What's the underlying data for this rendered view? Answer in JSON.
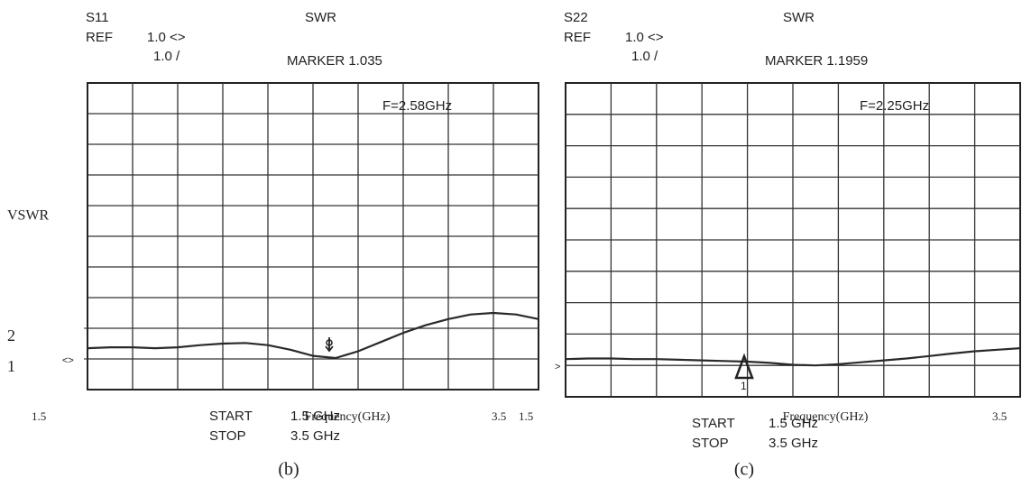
{
  "chart_data": [
    {
      "type": "line",
      "trace": "S11",
      "title": "SWR",
      "ref_label": "REF",
      "ref_value": "1.0 <>",
      "scale": "1.0 /",
      "marker": "MARKER 1.035",
      "marker_freq": "F=2.58GHz",
      "ref_symbol": "<>",
      "start_label": "START",
      "start": "1.5 GHz",
      "stop_label": "STOP",
      "stop": "3.5 GHz",
      "caption": "(b)",
      "x_label": "Frequency(GHz)",
      "y_label": "VSWR",
      "xlim": [
        1.5,
        3.5
      ],
      "xticks": [
        1.5,
        3.5
      ],
      "ylim": [
        0,
        10
      ],
      "yticks": [
        1,
        2
      ],
      "x": [
        1.5,
        1.6,
        1.7,
        1.8,
        1.9,
        2.0,
        2.1,
        2.2,
        2.3,
        2.4,
        2.5,
        2.6,
        2.7,
        2.8,
        2.9,
        3.0,
        3.1,
        3.2,
        3.3,
        3.4,
        3.5
      ],
      "series": [
        {
          "color": "#2a2a2a",
          "values": [
            1.35,
            1.38,
            1.38,
            1.35,
            1.38,
            1.45,
            1.5,
            1.52,
            1.45,
            1.3,
            1.1,
            1.03,
            1.25,
            1.55,
            1.85,
            2.1,
            2.3,
            2.45,
            2.5,
            2.45,
            2.3
          ]
        }
      ]
    },
    {
      "type": "line",
      "trace": "S22",
      "title": "SWR",
      "ref_label": "REF",
      "ref_value": "1.0 <>",
      "scale": "1.0 /",
      "marker": "MARKER 1.1959",
      "marker_freq": "F=2.25GHz",
      "ref_symbol": ">",
      "marker_number": "1",
      "start_label": "START",
      "start": "1.5 GHz",
      "stop_label": "STOP",
      "stop": "3.5 GHz",
      "caption": "(c)",
      "x_label": "Frequency(GHz)",
      "xlim": [
        1.5,
        3.5
      ],
      "xticks": [
        1.5,
        3.5
      ],
      "ylim": [
        0,
        10
      ],
      "x": [
        1.5,
        1.6,
        1.7,
        1.8,
        1.9,
        2.0,
        2.1,
        2.2,
        2.3,
        2.4,
        2.5,
        2.6,
        2.7,
        2.8,
        2.9,
        3.0,
        3.1,
        3.2,
        3.3,
        3.4,
        3.5
      ],
      "series": [
        {
          "color": "#2a2a2a",
          "values": [
            1.2,
            1.22,
            1.22,
            1.2,
            1.2,
            1.18,
            1.16,
            1.14,
            1.12,
            1.08,
            1.02,
            1.0,
            1.04,
            1.1,
            1.16,
            1.22,
            1.3,
            1.38,
            1.45,
            1.5,
            1.55
          ]
        }
      ]
    }
  ]
}
